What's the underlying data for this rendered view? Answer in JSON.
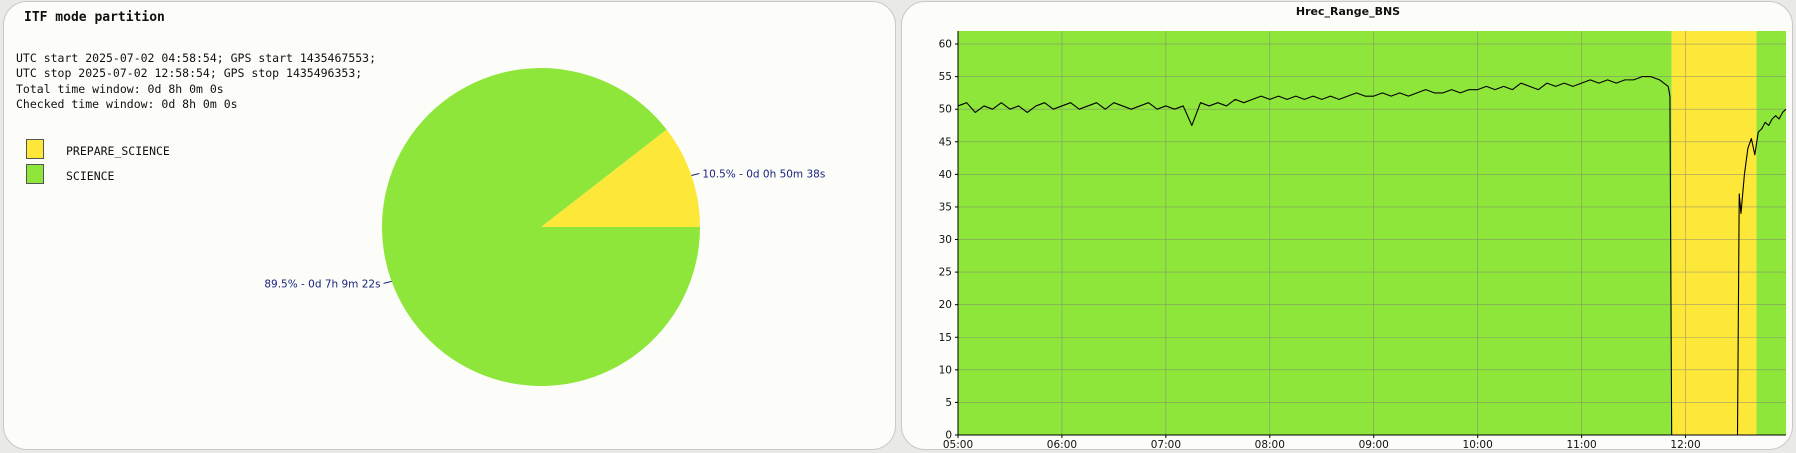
{
  "chart_data": [
    {
      "type": "pie",
      "title": "ITF mode partition",
      "info_lines": [
        "UTC start 2025-07-02 04:58:54; GPS start 1435467553;",
        "UTC stop 2025-07-02 12:58:54; GPS stop 1435496353;",
        "Total time window: 0d 8h 0m 0s",
        "Checked time window: 0d 8h 0m 0s"
      ],
      "slices": [
        {
          "label": "PREPARE_SCIENCE",
          "value": 10.5,
          "color": "#fde83a",
          "data_label": "10.5% - 0d 0h 50m 38s"
        },
        {
          "label": "SCIENCE",
          "value": 89.5,
          "color": "#8ee63a",
          "data_label": "89.5% - 0d 7h 9m 22s"
        }
      ],
      "legend_position": "top-left",
      "label_color": "#1a237e"
    },
    {
      "type": "line",
      "title": "Hrec_Range_BNS",
      "xlabel": "",
      "ylabel": "",
      "x_ticks": [
        "05:00",
        "06:00",
        "07:00",
        "08:00",
        "09:00",
        "10:00",
        "11:00",
        "12:00"
      ],
      "y_ticks": [
        "0",
        "5",
        "10",
        "15",
        "20",
        "25",
        "30",
        "35",
        "40",
        "45",
        "50",
        "55",
        "60"
      ],
      "xlim": [
        "05:00",
        "12:58"
      ],
      "ylim": [
        0,
        62
      ],
      "grid": true,
      "background_segments": [
        {
          "mode": "SCIENCE",
          "start": "05:00",
          "end": "11:52",
          "color": "#8ee63a"
        },
        {
          "mode": "PREPARE_SCIENCE",
          "start": "11:52",
          "end": "12:41",
          "color": "#fde83a"
        },
        {
          "mode": "SCIENCE",
          "start": "12:41",
          "end": "12:58",
          "color": "#8ee63a"
        }
      ],
      "series": [
        {
          "color": "#000000",
          "points": [
            [
              "05:00",
              50.5
            ],
            [
              "05:05",
              51
            ],
            [
              "05:10",
              49.5
            ],
            [
              "05:15",
              50.5
            ],
            [
              "05:20",
              50
            ],
            [
              "05:25",
              51
            ],
            [
              "05:30",
              50
            ],
            [
              "05:35",
              50.5
            ],
            [
              "05:40",
              49.5
            ],
            [
              "05:45",
              50.5
            ],
            [
              "05:50",
              51
            ],
            [
              "05:55",
              50
            ],
            [
              "06:00",
              50.5
            ],
            [
              "06:05",
              51
            ],
            [
              "06:10",
              50
            ],
            [
              "06:15",
              50.5
            ],
            [
              "06:20",
              51
            ],
            [
              "06:25",
              50
            ],
            [
              "06:30",
              51
            ],
            [
              "06:35",
              50.5
            ],
            [
              "06:40",
              50
            ],
            [
              "06:45",
              50.5
            ],
            [
              "06:50",
              51
            ],
            [
              "06:55",
              50
            ],
            [
              "07:00",
              50.5
            ],
            [
              "07:05",
              50
            ],
            [
              "07:10",
              50.5
            ],
            [
              "07:15",
              47.5
            ],
            [
              "07:20",
              51
            ],
            [
              "07:25",
              50.5
            ],
            [
              "07:30",
              51
            ],
            [
              "07:35",
              50.5
            ],
            [
              "07:40",
              51.5
            ],
            [
              "07:45",
              51
            ],
            [
              "07:50",
              51.5
            ],
            [
              "07:55",
              52
            ],
            [
              "08:00",
              51.5
            ],
            [
              "08:05",
              52
            ],
            [
              "08:10",
              51.5
            ],
            [
              "08:15",
              52
            ],
            [
              "08:20",
              51.5
            ],
            [
              "08:25",
              52
            ],
            [
              "08:30",
              51.5
            ],
            [
              "08:35",
              52
            ],
            [
              "08:40",
              51.5
            ],
            [
              "08:45",
              52
            ],
            [
              "08:50",
              52.5
            ],
            [
              "08:55",
              52
            ],
            [
              "09:00",
              52
            ],
            [
              "09:05",
              52.5
            ],
            [
              "09:10",
              52
            ],
            [
              "09:15",
              52.5
            ],
            [
              "09:20",
              52
            ],
            [
              "09:25",
              52.5
            ],
            [
              "09:30",
              53
            ],
            [
              "09:35",
              52.5
            ],
            [
              "09:40",
              52.5
            ],
            [
              "09:45",
              53
            ],
            [
              "09:50",
              52.5
            ],
            [
              "09:55",
              53
            ],
            [
              "10:00",
              53
            ],
            [
              "10:05",
              53.5
            ],
            [
              "10:10",
              53
            ],
            [
              "10:15",
              53.5
            ],
            [
              "10:20",
              53
            ],
            [
              "10:25",
              54
            ],
            [
              "10:30",
              53.5
            ],
            [
              "10:35",
              53
            ],
            [
              "10:40",
              54
            ],
            [
              "10:45",
              53.5
            ],
            [
              "10:50",
              54
            ],
            [
              "10:55",
              53.5
            ],
            [
              "11:00",
              54
            ],
            [
              "11:05",
              54.5
            ],
            [
              "11:10",
              54
            ],
            [
              "11:15",
              54.5
            ],
            [
              "11:20",
              54
            ],
            [
              "11:25",
              54.5
            ],
            [
              "11:30",
              54.5
            ],
            [
              "11:35",
              55
            ],
            [
              "11:40",
              55
            ],
            [
              "11:45",
              54.5
            ],
            [
              "11:50",
              53.5
            ],
            [
              "11:51",
              52
            ],
            [
              "11:52",
              0
            ],
            [
              "12:30",
              0
            ],
            [
              "12:31",
              37
            ],
            [
              "12:32",
              34
            ],
            [
              "12:34",
              40
            ],
            [
              "12:36",
              44
            ],
            [
              "12:38",
              45.5
            ],
            [
              "12:40",
              43
            ],
            [
              "12:42",
              46.5
            ],
            [
              "12:44",
              47
            ],
            [
              "12:46",
              48
            ],
            [
              "12:48",
              47.5
            ],
            [
              "12:50",
              48.5
            ],
            [
              "12:52",
              49
            ],
            [
              "12:54",
              48.5
            ],
            [
              "12:56",
              49.5
            ],
            [
              "12:58",
              50
            ]
          ]
        }
      ]
    }
  ]
}
